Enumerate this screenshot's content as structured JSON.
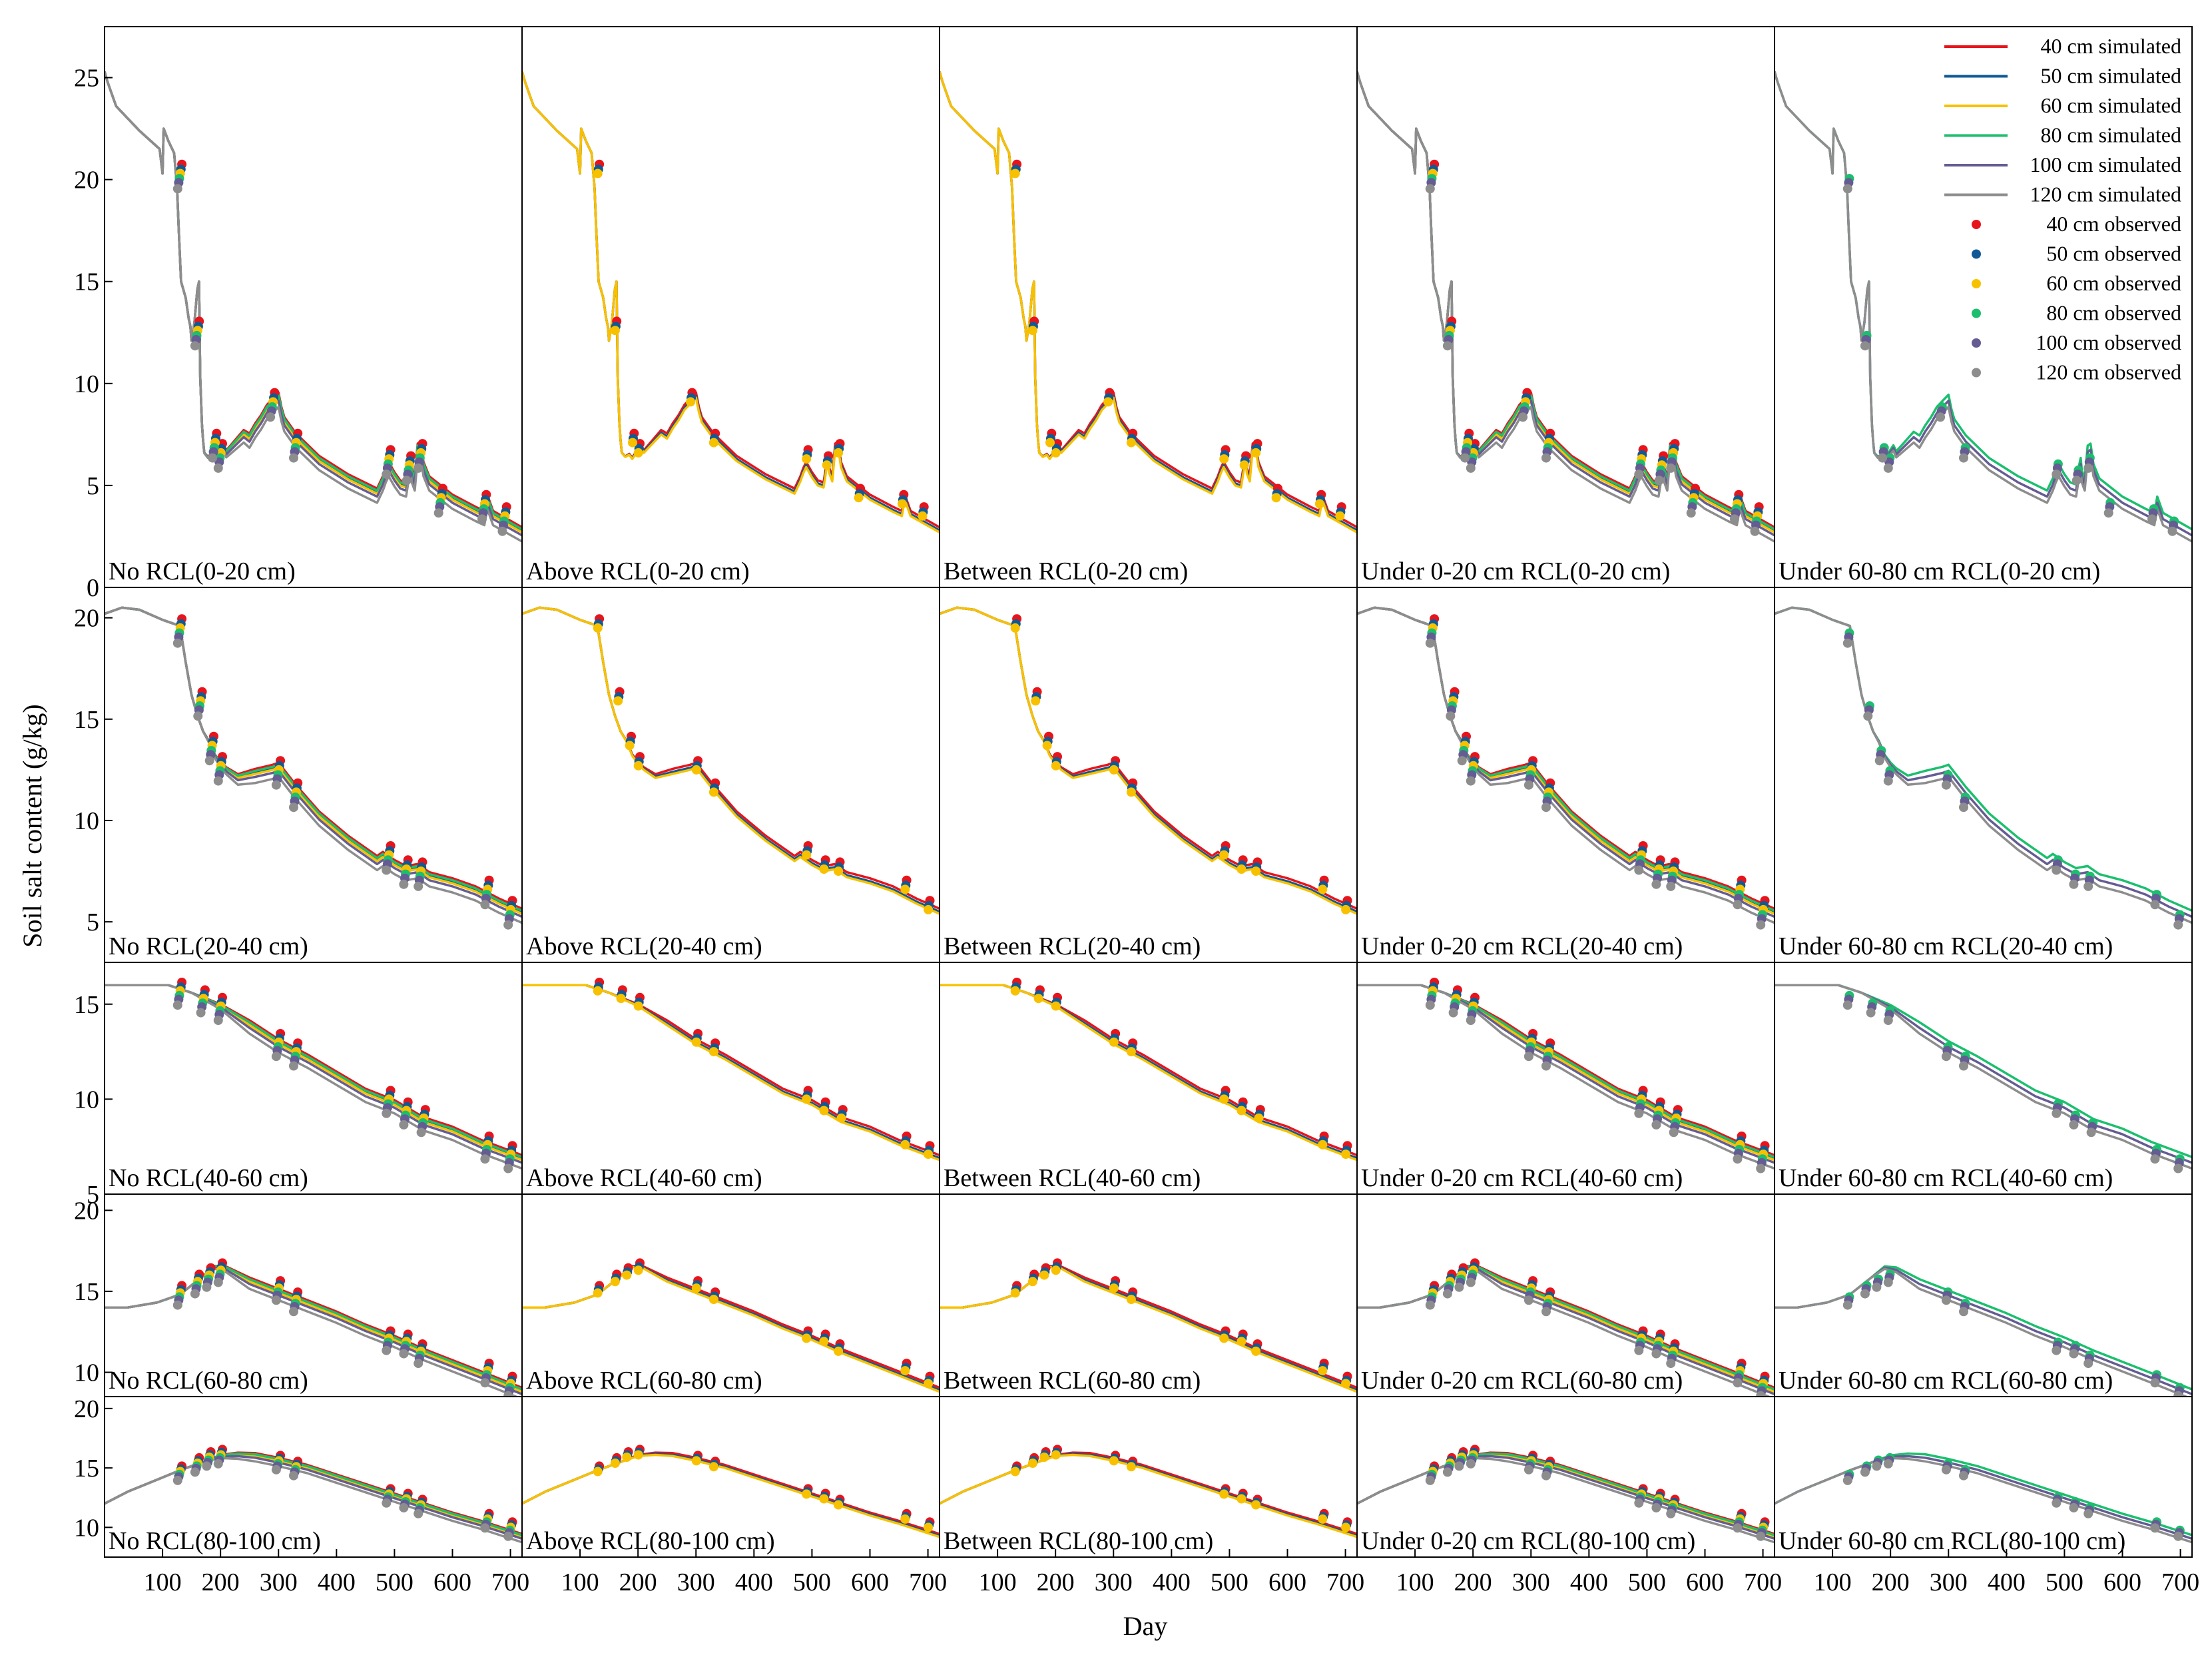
{
  "chart_data": {
    "type": "line",
    "xlabel": "Day",
    "ylabel": "Soil salt content (g/kg)",
    "xlim": [
      0,
      720
    ],
    "x_ticks": [
      100,
      200,
      300,
      400,
      500,
      600,
      700
    ],
    "x_tick_labels": [
      "100",
      "200",
      "300",
      "400",
      "500",
      "600",
      "700"
    ],
    "columns": [
      "No RCL",
      "Above RCL",
      "Between RCL",
      "Under 0-20 cm RCL",
      "Under 60-80 cm RCL"
    ],
    "column_series": [
      [
        "40 cm",
        "50 cm",
        "60 cm",
        "80 cm",
        "100 cm",
        "120 cm"
      ],
      [
        "40 cm",
        "50 cm",
        "60 cm"
      ],
      [
        "40 cm",
        "50 cm",
        "60 cm"
      ],
      [
        "40 cm",
        "50 cm",
        "60 cm",
        "80 cm",
        "100 cm",
        "120 cm"
      ],
      [
        "80 cm",
        "100 cm",
        "120 cm"
      ]
    ],
    "column_top_series": [
      "120 cm",
      "60 cm",
      "60 cm",
      "120 cm",
      "120 cm"
    ],
    "series_colors": {
      "40 cm": "#e8141b",
      "50 cm": "#0f5a96",
      "60 cm": "#f7c100",
      "80 cm": "#1cbf6e",
      "100 cm": "#655c93",
      "120 cm": "#8d8d8d"
    },
    "legend": {
      "position": "top-right",
      "entries": [
        {
          "label": "40 cm simulated",
          "series": "40 cm",
          "kind": "line"
        },
        {
          "label": "50 cm simulated",
          "series": "50 cm",
          "kind": "line"
        },
        {
          "label": "60 cm simulated",
          "series": "60 cm",
          "kind": "line"
        },
        {
          "label": "80 cm simulated",
          "series": "80 cm",
          "kind": "line"
        },
        {
          "label": "100 cm simulated",
          "series": "100 cm",
          "kind": "line"
        },
        {
          "label": "120 cm simulated",
          "series": "120 cm",
          "kind": "line"
        },
        {
          "label": "40 cm observed",
          "series": "40 cm",
          "kind": "marker"
        },
        {
          "label": "50 cm observed",
          "series": "50 cm",
          "kind": "marker"
        },
        {
          "label": "60 cm observed",
          "series": "60 cm",
          "kind": "marker"
        },
        {
          "label": "80 cm observed",
          "series": "80 cm",
          "kind": "marker"
        },
        {
          "label": "100 cm observed",
          "series": "100 cm",
          "kind": "marker"
        },
        {
          "label": "120 cm observed",
          "series": "120 cm",
          "kind": "marker"
        }
      ]
    },
    "rows": [
      {
        "layer": "0-20 cm",
        "ylim": [
          0,
          27.5
        ],
        "y_ticks": [
          0,
          5,
          10,
          15,
          20,
          25
        ],
        "y_tick_labels": [
          "0",
          "5",
          "10",
          "15",
          "20",
          "25"
        ],
        "simulated_base": {
          "x": [
            0,
            5,
            20,
            60,
            95,
            100,
            102,
            110,
            120,
            125,
            128,
            132,
            140,
            145,
            148,
            150,
            155,
            160,
            163,
            165,
            168,
            170,
            172,
            178,
            185,
            190,
            200,
            205,
            210,
            220,
            230,
            240,
            250,
            260,
            270,
            280,
            290,
            300,
            305,
            310,
            330,
            370,
            420,
            470,
            480,
            485,
            490,
            500,
            510,
            520,
            525,
            528,
            530,
            535,
            540,
            545,
            550,
            560,
            600,
            640,
            655,
            660,
            670,
            720
          ],
          "y": [
            25.3,
            24.8,
            23.6,
            22.4,
            21.5,
            20.3,
            22.5,
            21.9,
            21.3,
            19.6,
            17.5,
            15.0,
            14.2,
            13.2,
            12.8,
            12.1,
            13.0,
            14.6,
            15.0,
            10.3,
            8.0,
            7.2,
            6.6,
            6.4,
            6.5,
            6.3,
            6.7,
            6.9,
            6.6,
            6.9,
            7.2,
            7.5,
            7.3,
            7.8,
            8.2,
            8.7,
            9.0,
            9.3,
            8.6,
            8.1,
            7.3,
            6.2,
            5.3,
            4.6,
            5.2,
            5.6,
            5.9,
            5.4,
            5.0,
            4.9,
            5.8,
            6.2,
            5.6,
            5.2,
            6.8,
            6.9,
            5.9,
            5.2,
            4.3,
            3.7,
            3.5,
            4.3,
            3.5,
            2.7
          ]
        },
        "observed_days": [
          130,
          160,
          190,
          200,
          290,
          330,
          490,
          525,
          545,
          580,
          655,
          690
        ],
        "observed_base": [
          20.2,
          12.5,
          7.0,
          6.5,
          9.0,
          7.0,
          6.2,
          5.9,
          6.5,
          4.3,
          4.0,
          3.4
        ]
      },
      {
        "layer": "20-40 cm",
        "ylim": [
          3,
          21.5
        ],
        "y_ticks": [
          5,
          10,
          15,
          20
        ],
        "y_tick_labels": [
          "5",
          "10",
          "15",
          "20"
        ],
        "simulated_base": {
          "x": [
            0,
            30,
            60,
            100,
            130,
            140,
            150,
            160,
            170,
            180,
            190,
            200,
            210,
            230,
            260,
            290,
            300,
            330,
            370,
            420,
            470,
            480,
            500,
            520,
            540,
            560,
            600,
            640,
            680,
            720
          ],
          "y": [
            20.2,
            20.5,
            20.4,
            19.9,
            19.6,
            17.8,
            16.2,
            15.2,
            14.4,
            13.9,
            13.2,
            12.8,
            12.5,
            12.1,
            12.3,
            12.5,
            12.6,
            11.5,
            10.2,
            9.0,
            8.0,
            8.2,
            7.8,
            7.5,
            7.6,
            7.2,
            6.9,
            6.5,
            5.9,
            5.4
          ]
        },
        "observed_days": [
          130,
          165,
          185,
          200,
          300,
          330,
          490,
          520,
          545,
          660,
          700
        ],
        "observed_base": [
          19.4,
          15.8,
          13.6,
          12.6,
          12.4,
          11.3,
          8.2,
          7.5,
          7.4,
          6.5,
          5.5
        ]
      },
      {
        "layer": "40-60 cm",
        "ylim": [
          5,
          17.2
        ],
        "y_ticks": [
          5,
          10,
          15
        ],
        "y_tick_labels": [
          "5",
          "10",
          "15"
        ],
        "simulated_base": {
          "x": [
            0,
            60,
            110,
            150,
            200,
            250,
            300,
            350,
            400,
            450,
            500,
            550,
            600,
            650,
            720
          ],
          "y": [
            16.0,
            16.0,
            16.0,
            15.6,
            14.9,
            13.9,
            12.9,
            12.1,
            11.2,
            10.3,
            9.7,
            8.8,
            8.3,
            7.6,
            6.8
          ]
        },
        "observed_days": [
          130,
          170,
          200,
          300,
          330,
          490,
          520,
          550,
          660,
          700
        ],
        "observed_base": [
          15.6,
          15.2,
          14.8,
          12.9,
          12.4,
          9.9,
          9.3,
          8.9,
          7.5,
          7.0
        ]
      },
      {
        "layer": "60-80 cm",
        "ylim": [
          8.5,
          21
        ],
        "y_ticks": [
          10,
          15,
          20
        ],
        "y_tick_labels": [
          "10",
          "15",
          "20"
        ],
        "simulated_base": {
          "x": [
            0,
            40,
            90,
            130,
            165,
            190,
            210,
            250,
            300,
            350,
            400,
            450,
            500,
            550,
            600,
            650,
            720
          ],
          "y": [
            14.0,
            14.0,
            14.3,
            14.8,
            15.8,
            16.5,
            16.4,
            15.6,
            14.9,
            14.2,
            13.5,
            12.7,
            12.0,
            11.2,
            10.5,
            9.8,
            8.8
          ]
        },
        "observed_days": [
          130,
          160,
          180,
          200,
          300,
          330,
          490,
          520,
          545,
          660,
          700
        ],
        "observed_base": [
          14.8,
          15.5,
          15.9,
          16.2,
          15.1,
          14.4,
          12.0,
          11.8,
          11.2,
          10.0,
          9.2
        ]
      },
      {
        "layer": "80-100 cm",
        "ylim": [
          7.5,
          21
        ],
        "y_ticks": [
          10,
          15,
          20
        ],
        "y_tick_labels": [
          "10",
          "15",
          "20"
        ],
        "simulated_base": {
          "x": [
            0,
            40,
            90,
            130,
            170,
            200,
            230,
            260,
            300,
            350,
            400,
            450,
            500,
            550,
            600,
            650,
            720
          ],
          "y": [
            12.0,
            13.0,
            14.0,
            14.8,
            15.5,
            16.0,
            16.1,
            16.0,
            15.6,
            15.0,
            14.2,
            13.4,
            12.6,
            11.8,
            11.0,
            10.3,
            9.2
          ]
        },
        "observed_days": [
          130,
          160,
          180,
          200,
          300,
          330,
          490,
          520,
          545,
          660,
          700
        ],
        "observed_base": [
          14.6,
          15.3,
          15.8,
          16.0,
          15.5,
          15.0,
          12.7,
          12.3,
          11.8,
          10.6,
          9.9
        ]
      }
    ],
    "panel_labels": [
      [
        "No RCL(0-20 cm)",
        "Above RCL(0-20 cm)",
        "Between RCL(0-20 cm)",
        "Under 0-20 cm RCL(0-20 cm)",
        "Under 60-80 cm RCL(0-20 cm)"
      ],
      [
        "No RCL(20-40 cm)",
        "Above RCL(20-40 cm)",
        "Between RCL(20-40 cm)",
        "Under 0-20 cm RCL(20-40 cm)",
        "Under 60-80 cm RCL(20-40 cm)"
      ],
      [
        "No RCL(40-60 cm)",
        "Above RCL(40-60 cm)",
        "Between RCL(40-60 cm)",
        "Under 0-20 cm RCL(40-60 cm)",
        "Under 60-80 cm RCL(40-60 cm)"
      ],
      [
        "No RCL(60-80 cm)",
        "Above RCL(60-80 cm)",
        "Between RCL(60-80 cm)",
        "Under 0-20 cm RCL(60-80 cm)",
        "Under 60-80 cm RCL(60-80 cm)"
      ],
      [
        "No RCL(80-100 cm)",
        "Above RCL(80-100 cm)",
        "Between RCL(80-100 cm)",
        "Under 0-20 cm RCL(80-100 cm)",
        "Under 60-80 cm RCL(80-100 cm)"
      ]
    ]
  }
}
